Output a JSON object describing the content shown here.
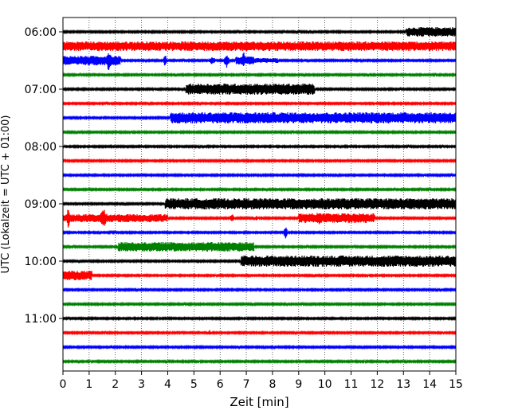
{
  "chart_data": {
    "type": "line",
    "title": "",
    "xlabel": "Zeit  [min]",
    "ylabel": "UTC (Lokalzeit = UTC + 01:00)",
    "xlim": [
      0,
      15
    ],
    "x_ticks": [
      "0",
      "1",
      "2",
      "3",
      "4",
      "5",
      "6",
      "7",
      "8",
      "9",
      "10",
      "11",
      "12",
      "13",
      "14",
      "15"
    ],
    "y_ticks": [
      "06:00",
      "07:00",
      "08:00",
      "09:00",
      "10:00",
      "11:00"
    ],
    "grid": "vertical-dotted",
    "line_colors": [
      "#000000",
      "#ff0000",
      "#0000ff",
      "#008000"
    ],
    "traces": [
      {
        "start": "06:00",
        "color": "#000000",
        "events": [
          {
            "x0": 13.1,
            "x1": 15.0,
            "amp": 6,
            "kind": "block"
          }
        ]
      },
      {
        "start": "06:15",
        "color": "#ff0000",
        "events": [
          {
            "x0": 0.0,
            "x1": 15.0,
            "amp": 6,
            "kind": "block"
          }
        ]
      },
      {
        "start": "06:30",
        "color": "#0000ff",
        "events": [
          {
            "x0": 0.0,
            "x1": 2.2,
            "amp": 6,
            "kind": "block"
          },
          {
            "x0": 1.6,
            "x1": 1.9,
            "amp": 14,
            "kind": "spike"
          },
          {
            "x0": 3.8,
            "x1": 4.0,
            "amp": 8,
            "kind": "spike"
          },
          {
            "x0": 5.5,
            "x1": 5.9,
            "amp": 5,
            "kind": "spike"
          },
          {
            "x0": 6.1,
            "x1": 6.4,
            "amp": 9,
            "kind": "spike"
          },
          {
            "x0": 6.6,
            "x1": 7.3,
            "amp": 5,
            "kind": "block"
          },
          {
            "x0": 6.8,
            "x1": 7.0,
            "amp": 11,
            "kind": "spike"
          },
          {
            "x0": 7.3,
            "x1": 8.2,
            "amp": 3,
            "kind": "block"
          }
        ]
      },
      {
        "start": "06:45",
        "color": "#008000",
        "events": []
      },
      {
        "start": "07:00",
        "color": "#000000",
        "events": [
          {
            "x0": 4.7,
            "x1": 9.6,
            "amp": 7,
            "kind": "block"
          }
        ]
      },
      {
        "start": "07:15",
        "color": "#ff0000",
        "events": []
      },
      {
        "start": "07:30",
        "color": "#0000ff",
        "events": [
          {
            "x0": 4.1,
            "x1": 15.0,
            "amp": 7,
            "kind": "block"
          }
        ]
      },
      {
        "start": "07:45",
        "color": "#008000",
        "events": []
      },
      {
        "start": "08:00",
        "color": "#000000",
        "events": []
      },
      {
        "start": "08:15",
        "color": "#ff0000",
        "events": []
      },
      {
        "start": "08:30",
        "color": "#0000ff",
        "events": []
      },
      {
        "start": "08:45",
        "color": "#008000",
        "events": []
      },
      {
        "start": "09:00",
        "color": "#000000",
        "events": [
          {
            "x0": 3.9,
            "x1": 15.0,
            "amp": 7,
            "kind": "block"
          }
        ]
      },
      {
        "start": "09:15",
        "color": "#ff0000",
        "events": [
          {
            "x0": 0.0,
            "x1": 4.0,
            "amp": 5,
            "kind": "block"
          },
          {
            "x0": 0.1,
            "x1": 0.3,
            "amp": 14,
            "kind": "spike"
          },
          {
            "x0": 1.3,
            "x1": 1.8,
            "amp": 12,
            "kind": "spike"
          },
          {
            "x0": 6.3,
            "x1": 6.6,
            "amp": 6,
            "kind": "spike"
          },
          {
            "x0": 7.3,
            "x1": 7.5,
            "amp": 4,
            "kind": "spike"
          },
          {
            "x0": 9.0,
            "x1": 11.9,
            "amp": 6,
            "kind": "block"
          },
          {
            "x0": 9.5,
            "x1": 10.0,
            "amp": 9,
            "kind": "spike"
          }
        ]
      },
      {
        "start": "09:30",
        "color": "#0000ff",
        "events": [
          {
            "x0": 8.4,
            "x1": 8.6,
            "amp": 8,
            "kind": "spike"
          }
        ]
      },
      {
        "start": "09:45",
        "color": "#008000",
        "events": [
          {
            "x0": 2.1,
            "x1": 7.3,
            "amp": 6,
            "kind": "block"
          }
        ]
      },
      {
        "start": "10:00",
        "color": "#000000",
        "events": [
          {
            "x0": 6.8,
            "x1": 15.0,
            "amp": 7,
            "kind": "block"
          }
        ]
      },
      {
        "start": "10:15",
        "color": "#ff0000",
        "events": [
          {
            "x0": 0.0,
            "x1": 1.1,
            "amp": 6,
            "kind": "block"
          }
        ]
      },
      {
        "start": "10:30",
        "color": "#0000ff",
        "events": []
      },
      {
        "start": "10:45",
        "color": "#008000",
        "events": []
      },
      {
        "start": "11:00",
        "color": "#000000",
        "events": []
      },
      {
        "start": "11:15",
        "color": "#ff0000",
        "events": [
          {
            "x0": 5.5,
            "x1": 5.7,
            "amp": 4,
            "kind": "spike"
          }
        ]
      },
      {
        "start": "11:30",
        "color": "#0000ff",
        "events": []
      },
      {
        "start": "11:45",
        "color": "#008000",
        "events": []
      }
    ]
  }
}
